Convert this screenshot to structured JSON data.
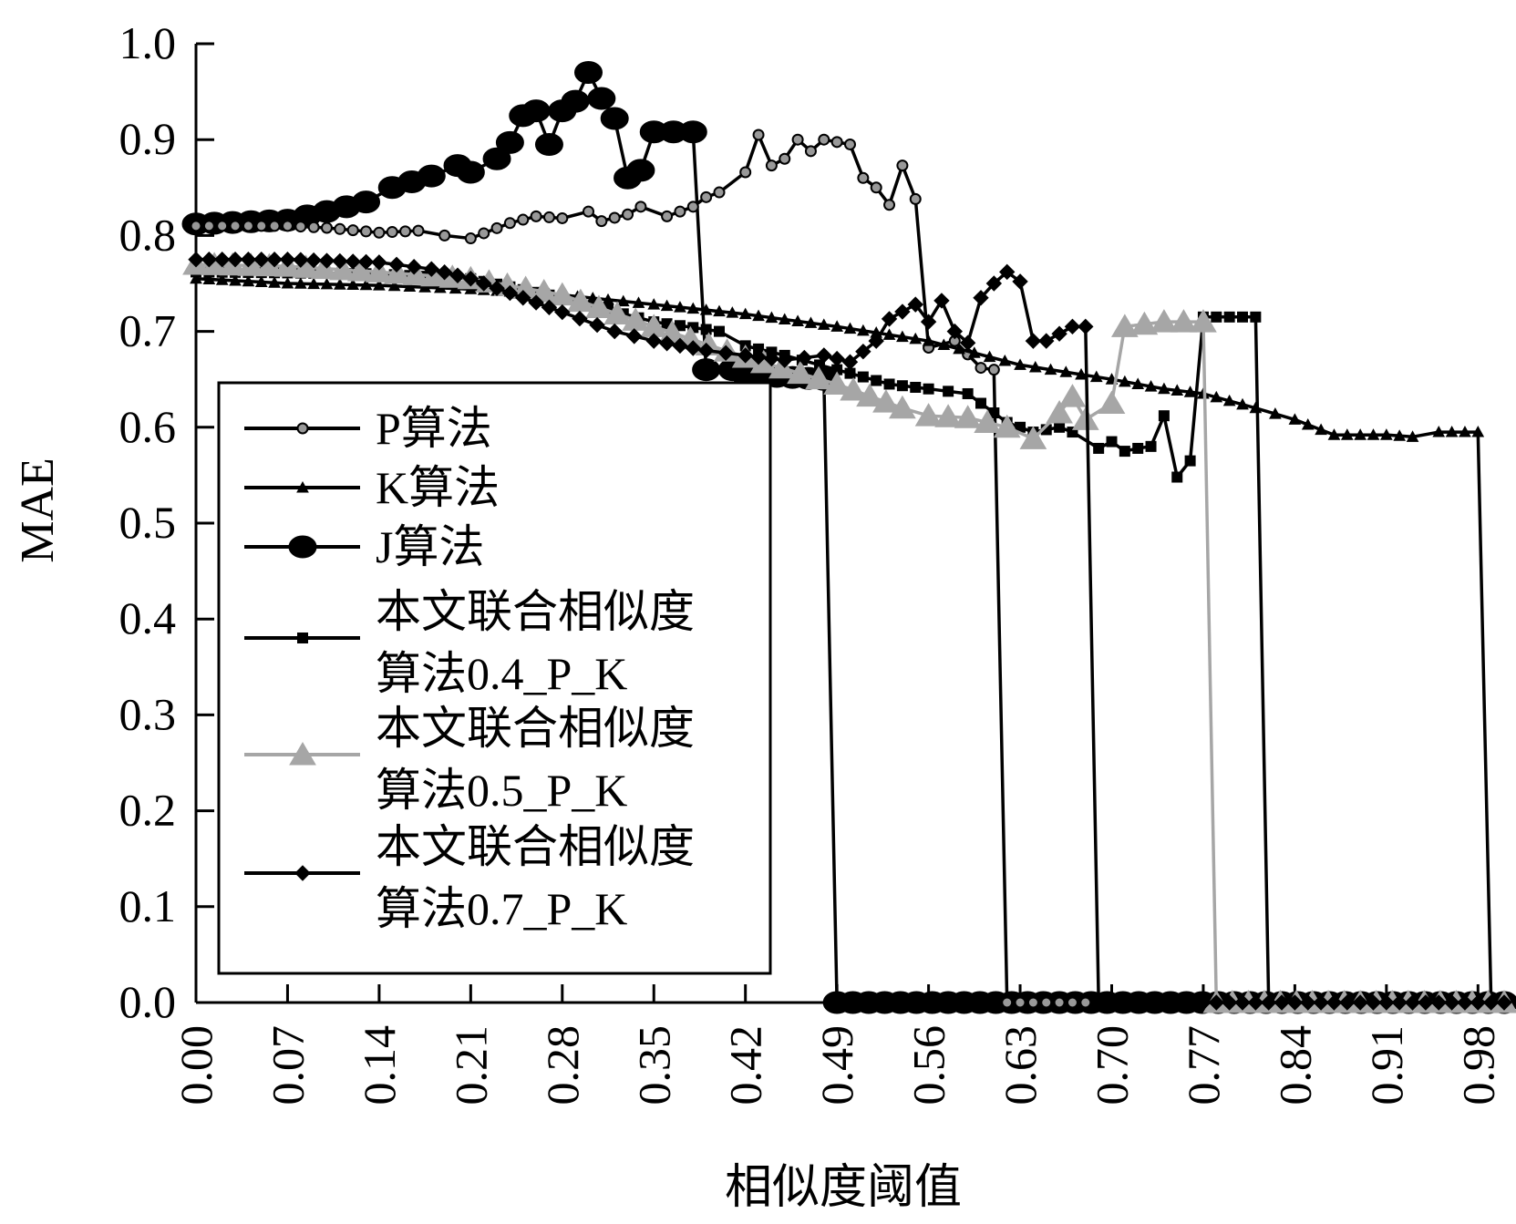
{
  "chart_data": {
    "type": "line",
    "xlabel": "相似度阈值",
    "ylabel": "MAE",
    "xlim": [
      0,
      1.0
    ],
    "ylim": [
      0,
      1.0
    ],
    "x_ticks": [
      "0.00",
      "0.07",
      "0.14",
      "0.21",
      "0.28",
      "0.35",
      "0.42",
      "0.49",
      "0.56",
      "0.63",
      "0.70",
      "0.77",
      "0.84",
      "0.91",
      "0.98"
    ],
    "y_ticks": [
      "0.0",
      "0.1",
      "0.2",
      "0.3",
      "0.4",
      "0.5",
      "0.6",
      "0.7",
      "0.8",
      "0.9",
      "1.0"
    ],
    "legend_position": "center-left",
    "series": [
      {
        "name": "P算法",
        "color": "#000000",
        "marker": "circle-small",
        "marker_fill": "#999999",
        "points": [
          [
            0.0,
            0.81
          ],
          [
            0.07,
            0.81
          ],
          [
            0.1,
            0.808
          ],
          [
            0.14,
            0.803
          ],
          [
            0.17,
            0.805
          ],
          [
            0.19,
            0.8
          ],
          [
            0.21,
            0.797
          ],
          [
            0.24,
            0.813
          ],
          [
            0.26,
            0.82
          ],
          [
            0.28,
            0.818
          ],
          [
            0.3,
            0.825
          ],
          [
            0.31,
            0.815
          ],
          [
            0.33,
            0.822
          ],
          [
            0.34,
            0.83
          ],
          [
            0.36,
            0.82
          ],
          [
            0.38,
            0.83
          ],
          [
            0.39,
            0.84
          ],
          [
            0.4,
            0.845
          ],
          [
            0.42,
            0.866
          ],
          [
            0.43,
            0.905
          ],
          [
            0.44,
            0.873
          ],
          [
            0.45,
            0.88
          ],
          [
            0.46,
            0.9
          ],
          [
            0.47,
            0.888
          ],
          [
            0.48,
            0.9
          ],
          [
            0.5,
            0.895
          ],
          [
            0.51,
            0.86
          ],
          [
            0.52,
            0.85
          ],
          [
            0.53,
            0.832
          ],
          [
            0.54,
            0.873
          ],
          [
            0.55,
            0.838
          ],
          [
            0.56,
            0.683
          ],
          [
            0.58,
            0.69
          ],
          [
            0.6,
            0.662
          ],
          [
            0.61,
            0.66
          ],
          [
            0.62,
            0.0
          ],
          [
            1.0,
            0.0
          ]
        ]
      },
      {
        "name": "K算法",
        "color": "#000000",
        "marker": "triangle-small",
        "marker_fill": "#000000",
        "points": [
          [
            0.0,
            0.755
          ],
          [
            0.07,
            0.75
          ],
          [
            0.14,
            0.748
          ],
          [
            0.21,
            0.744
          ],
          [
            0.28,
            0.738
          ],
          [
            0.35,
            0.728
          ],
          [
            0.42,
            0.718
          ],
          [
            0.49,
            0.705
          ],
          [
            0.56,
            0.69
          ],
          [
            0.63,
            0.665
          ],
          [
            0.7,
            0.65
          ],
          [
            0.74,
            0.64
          ],
          [
            0.77,
            0.635
          ],
          [
            0.81,
            0.62
          ],
          [
            0.84,
            0.608
          ],
          [
            0.87,
            0.592
          ],
          [
            0.91,
            0.592
          ],
          [
            0.93,
            0.59
          ],
          [
            0.95,
            0.595
          ],
          [
            0.98,
            0.595
          ],
          [
            0.99,
            0.0
          ],
          [
            1.0,
            0.0
          ]
        ]
      },
      {
        "name": "J算法",
        "color": "#000000",
        "marker": "circle-large",
        "marker_fill": "#000000",
        "points": [
          [
            0.0,
            0.812
          ],
          [
            0.07,
            0.816
          ],
          [
            0.1,
            0.825
          ],
          [
            0.13,
            0.835
          ],
          [
            0.15,
            0.85
          ],
          [
            0.18,
            0.862
          ],
          [
            0.2,
            0.873
          ],
          [
            0.21,
            0.866
          ],
          [
            0.23,
            0.88
          ],
          [
            0.24,
            0.897
          ],
          [
            0.25,
            0.925
          ],
          [
            0.26,
            0.93
          ],
          [
            0.27,
            0.895
          ],
          [
            0.28,
            0.93
          ],
          [
            0.29,
            0.94
          ],
          [
            0.3,
            0.97
          ],
          [
            0.31,
            0.943
          ],
          [
            0.32,
            0.922
          ],
          [
            0.33,
            0.86
          ],
          [
            0.34,
            0.868
          ],
          [
            0.35,
            0.908
          ],
          [
            0.38,
            0.908
          ],
          [
            0.39,
            0.66
          ],
          [
            0.41,
            0.66
          ],
          [
            0.42,
            0.655
          ],
          [
            0.48,
            0.65
          ],
          [
            0.49,
            0.0
          ],
          [
            1.0,
            0.0
          ]
        ]
      },
      {
        "name": "本文联合相似度算法0.4_P_K",
        "color": "#000000",
        "marker": "square-small",
        "marker_fill": "#000000",
        "points": [
          [
            0.0,
            0.762
          ],
          [
            0.14,
            0.76
          ],
          [
            0.21,
            0.755
          ],
          [
            0.28,
            0.735
          ],
          [
            0.35,
            0.71
          ],
          [
            0.4,
            0.7
          ],
          [
            0.42,
            0.685
          ],
          [
            0.45,
            0.675
          ],
          [
            0.49,
            0.66
          ],
          [
            0.53,
            0.645
          ],
          [
            0.56,
            0.64
          ],
          [
            0.59,
            0.635
          ],
          [
            0.62,
            0.605
          ],
          [
            0.64,
            0.595
          ],
          [
            0.66,
            0.6
          ],
          [
            0.67,
            0.595
          ],
          [
            0.69,
            0.578
          ],
          [
            0.7,
            0.585
          ],
          [
            0.71,
            0.575
          ],
          [
            0.72,
            0.578
          ],
          [
            0.73,
            0.58
          ],
          [
            0.74,
            0.612
          ],
          [
            0.75,
            0.548
          ],
          [
            0.76,
            0.565
          ],
          [
            0.77,
            0.715
          ],
          [
            0.81,
            0.715
          ],
          [
            0.82,
            0.0
          ],
          [
            1.0,
            0.0
          ]
        ]
      },
      {
        "name": "本文联合相似度算法0.5_P_K",
        "color": "#a6a6a6",
        "marker": "triangle-large",
        "marker_fill": "#a6a6a6",
        "points": [
          [
            0.0,
            0.77
          ],
          [
            0.07,
            0.768
          ],
          [
            0.14,
            0.762
          ],
          [
            0.21,
            0.755
          ],
          [
            0.28,
            0.738
          ],
          [
            0.35,
            0.705
          ],
          [
            0.42,
            0.673
          ],
          [
            0.49,
            0.645
          ],
          [
            0.54,
            0.62
          ],
          [
            0.56,
            0.612
          ],
          [
            0.59,
            0.61
          ],
          [
            0.62,
            0.6
          ],
          [
            0.64,
            0.588
          ],
          [
            0.66,
            0.615
          ],
          [
            0.67,
            0.632
          ],
          [
            0.68,
            0.608
          ],
          [
            0.7,
            0.625
          ],
          [
            0.71,
            0.705
          ],
          [
            0.74,
            0.71
          ],
          [
            0.77,
            0.71
          ],
          [
            0.78,
            0.0
          ],
          [
            1.0,
            0.0
          ]
        ]
      },
      {
        "name": "本文联合相似度算法0.7_P_K",
        "color": "#000000",
        "marker": "diamond-small",
        "marker_fill": "#000000",
        "points": [
          [
            0.0,
            0.775
          ],
          [
            0.07,
            0.775
          ],
          [
            0.14,
            0.772
          ],
          [
            0.18,
            0.765
          ],
          [
            0.21,
            0.755
          ],
          [
            0.25,
            0.735
          ],
          [
            0.28,
            0.72
          ],
          [
            0.32,
            0.7
          ],
          [
            0.35,
            0.69
          ],
          [
            0.39,
            0.68
          ],
          [
            0.42,
            0.675
          ],
          [
            0.45,
            0.67
          ],
          [
            0.48,
            0.675
          ],
          [
            0.5,
            0.668
          ],
          [
            0.52,
            0.69
          ],
          [
            0.53,
            0.713
          ],
          [
            0.55,
            0.728
          ],
          [
            0.56,
            0.71
          ],
          [
            0.57,
            0.732
          ],
          [
            0.58,
            0.7
          ],
          [
            0.59,
            0.688
          ],
          [
            0.6,
            0.735
          ],
          [
            0.61,
            0.75
          ],
          [
            0.62,
            0.762
          ],
          [
            0.63,
            0.752
          ],
          [
            0.64,
            0.69
          ],
          [
            0.65,
            0.69
          ],
          [
            0.67,
            0.705
          ],
          [
            0.68,
            0.705
          ],
          [
            0.69,
            0.0
          ],
          [
            1.0,
            0.0
          ]
        ]
      }
    ]
  }
}
